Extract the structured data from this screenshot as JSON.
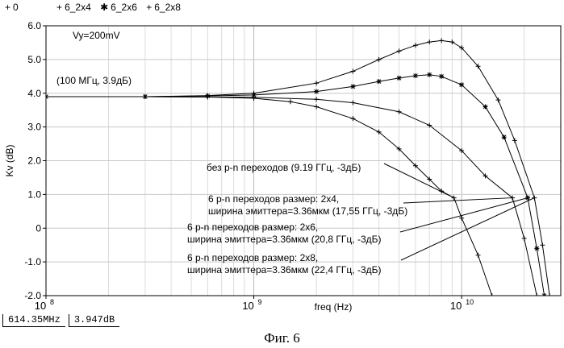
{
  "legend": {
    "items": [
      {
        "marker": "+",
        "name": "0"
      },
      {
        "marker": "+",
        "name": "6_2x4"
      },
      {
        "marker": "✱",
        "name": "6_2x6"
      },
      {
        "marker": "+",
        "name": "6_2x8"
      }
    ]
  },
  "status": {
    "freq": "614.35MHz",
    "value": "3.947dB"
  },
  "caption": "Фиг. 6",
  "chart_data": {
    "type": "line",
    "xscale": "log",
    "xlim": [
      100000000,
      30000000000
    ],
    "ylim": [
      -2.0,
      6.0
    ],
    "ylabel": "Kv (dB)",
    "xlabel": "freq (Hz)",
    "x_ticks": [
      {
        "value": 100000000,
        "base": "10",
        "exp": "8"
      },
      {
        "value": 1000000000,
        "base": "10",
        "exp": "9"
      },
      {
        "value": 10000000000,
        "base": "10",
        "exp": "10"
      }
    ],
    "y_ticks": [
      "6.0",
      "5.0",
      "4.0",
      "3.0",
      "2.0",
      "1.0",
      "0",
      "-1.0",
      "-2.0"
    ],
    "grid": true,
    "series": [
      {
        "name": "0",
        "marker": "plus",
        "x": [
          100000000.0,
          300000000.0,
          600000000.0,
          1000000000.0,
          1500000000.0,
          2000000000.0,
          3000000000.0,
          4000000000.0,
          5000000000.0,
          6000000000.0,
          7000000000.0,
          8000000000.0,
          9190000000.0,
          10000000000.0,
          12000000000.0,
          14000000000.0
        ],
        "y": [
          3.9,
          3.9,
          3.89,
          3.85,
          3.75,
          3.6,
          3.25,
          2.85,
          2.35,
          1.85,
          1.45,
          1.1,
          0.9,
          0.3,
          -0.8,
          -2.0
        ]
      },
      {
        "name": "6_2x4",
        "marker": "plus",
        "x": [
          100000000.0,
          300000000.0,
          600000000.0,
          1000000000.0,
          2000000000.0,
          3000000000.0,
          5000000000.0,
          7000000000.0,
          10000000000.0,
          13000000000.0,
          17550000000.0,
          20000000000.0,
          23000000000.0
        ],
        "y": [
          3.9,
          3.9,
          3.89,
          3.88,
          3.82,
          3.72,
          3.45,
          3.05,
          2.3,
          1.55,
          0.9,
          -0.3,
          -2.0
        ]
      },
      {
        "name": "6_2x6",
        "marker": "asterisk",
        "x": [
          100000000.0,
          300000000.0,
          600000000.0,
          1000000000.0,
          2000000000.0,
          3000000000.0,
          4000000000.0,
          5000000000.0,
          6000000000.0,
          7000000000.0,
          8000000000.0,
          10000000000.0,
          13000000000.0,
          16000000000.0,
          20800000000.0,
          23000000000.0,
          25000000000.0
        ],
        "y": [
          3.9,
          3.9,
          3.92,
          3.95,
          4.05,
          4.2,
          4.35,
          4.45,
          4.52,
          4.55,
          4.5,
          4.25,
          3.6,
          2.7,
          0.9,
          -0.6,
          -2.0
        ]
      },
      {
        "name": "6_2x8",
        "marker": "plus",
        "x": [
          100000000.0,
          300000000.0,
          600000000.0,
          1000000000.0,
          2000000000.0,
          3000000000.0,
          4000000000.0,
          5000000000.0,
          6000000000.0,
          7000000000.0,
          8000000000.0,
          9000000000.0,
          10000000000.0,
          12000000000.0,
          15000000000.0,
          18000000000.0,
          22400000000.0,
          24500000000.0,
          26500000000.0
        ],
        "y": [
          3.9,
          3.9,
          3.93,
          4.0,
          4.3,
          4.65,
          5.0,
          5.25,
          5.42,
          5.52,
          5.56,
          5.52,
          5.35,
          4.8,
          3.8,
          2.6,
          0.9,
          -0.5,
          -2.0
        ]
      }
    ],
    "annotations": [
      {
        "text": "Vy=200mV"
      },
      {
        "text": "(100 МГц, 3.9дБ)"
      },
      {
        "lines": [
          "без p-n переходов (9.19 ГГц, -3дБ)"
        ],
        "target_series": "0",
        "target": [
          9190000000.0,
          0.9
        ]
      },
      {
        "lines": [
          "6 p-n переходов размер: 2x4,",
          "ширина эмиттера=3.36мкм (17,55 ГГц, -3дБ)"
        ],
        "target_series": "6_2x4",
        "target": [
          17550000000.0,
          0.9
        ]
      },
      {
        "lines": [
          "6 p-n переходов размер: 2x6,",
          "ширина эмиттера=3.36мкм (20,8 ГГц, -3дБ)"
        ],
        "target_series": "6_2x6",
        "target": [
          20800000000.0,
          0.9
        ]
      },
      {
        "lines": [
          "6 p-n переходов размер: 2x8,",
          "ширина эмиттера=3.36мкм (22,4 ГГц, -3дБ)"
        ],
        "target_series": "6_2x8",
        "target": [
          22400000000.0,
          0.9
        ]
      }
    ]
  }
}
